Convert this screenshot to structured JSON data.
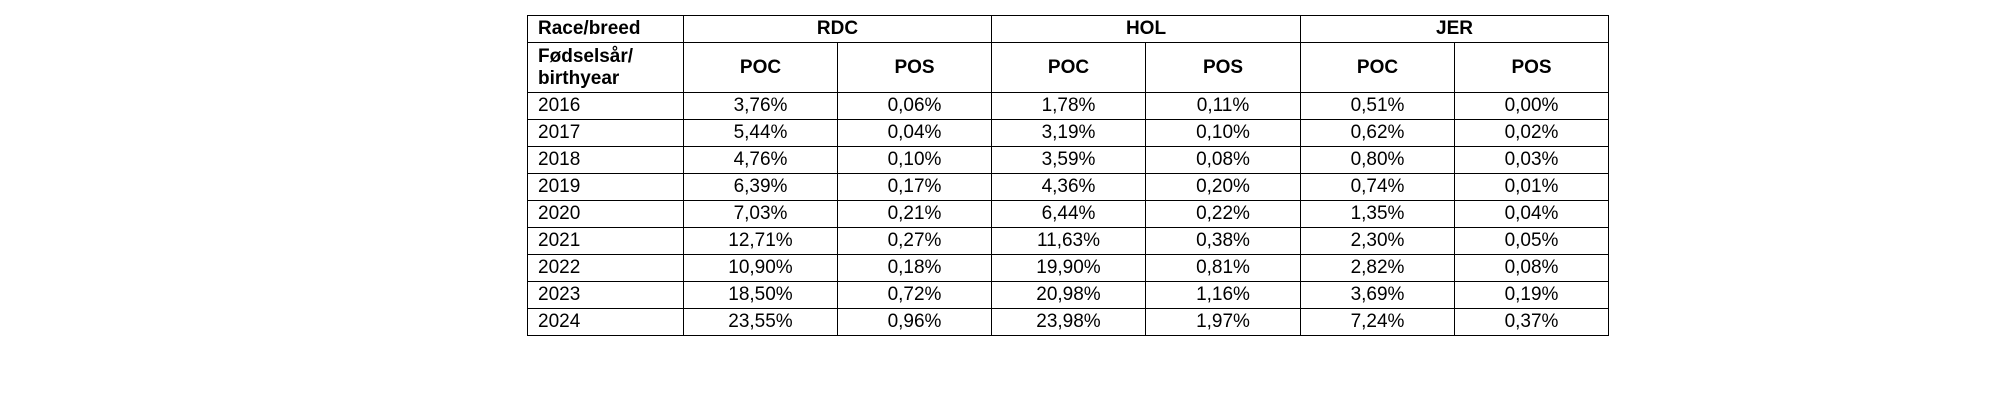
{
  "table": {
    "corner": "Race/breed",
    "subcorner": "Fødselsår/\nbirthyear",
    "groups": [
      "RDC",
      "HOL",
      "JER"
    ],
    "columns": [
      "POC",
      "POS",
      "POC",
      "POS",
      "POC",
      "POS"
    ],
    "rows": [
      [
        "2016",
        "3,76%",
        "0,06%",
        "1,78%",
        "0,11%",
        "0,51%",
        "0,00%"
      ],
      [
        "2017",
        "5,44%",
        "0,04%",
        "3,19%",
        "0,10%",
        "0,62%",
        "0,02%"
      ],
      [
        "2018",
        "4,76%",
        "0,10%",
        "3,59%",
        "0,08%",
        "0,80%",
        "0,03%"
      ],
      [
        "2019",
        "6,39%",
        "0,17%",
        "4,36%",
        "0,20%",
        "0,74%",
        "0,01%"
      ],
      [
        "2020",
        "7,03%",
        "0,21%",
        "6,44%",
        "0,22%",
        "1,35%",
        "0,04%"
      ],
      [
        "2021",
        "12,71%",
        "0,27%",
        "11,63%",
        "0,38%",
        "2,30%",
        "0,05%"
      ],
      [
        "2022",
        "10,90%",
        "0,18%",
        "19,90%",
        "0,81%",
        "2,82%",
        "0,08%"
      ],
      [
        "2023",
        "18,50%",
        "0,72%",
        "20,98%",
        "1,16%",
        "3,69%",
        "0,19%"
      ],
      [
        "2024",
        "23,55%",
        "0,96%",
        "23,98%",
        "1,97%",
        "7,24%",
        "0,37%"
      ]
    ]
  }
}
